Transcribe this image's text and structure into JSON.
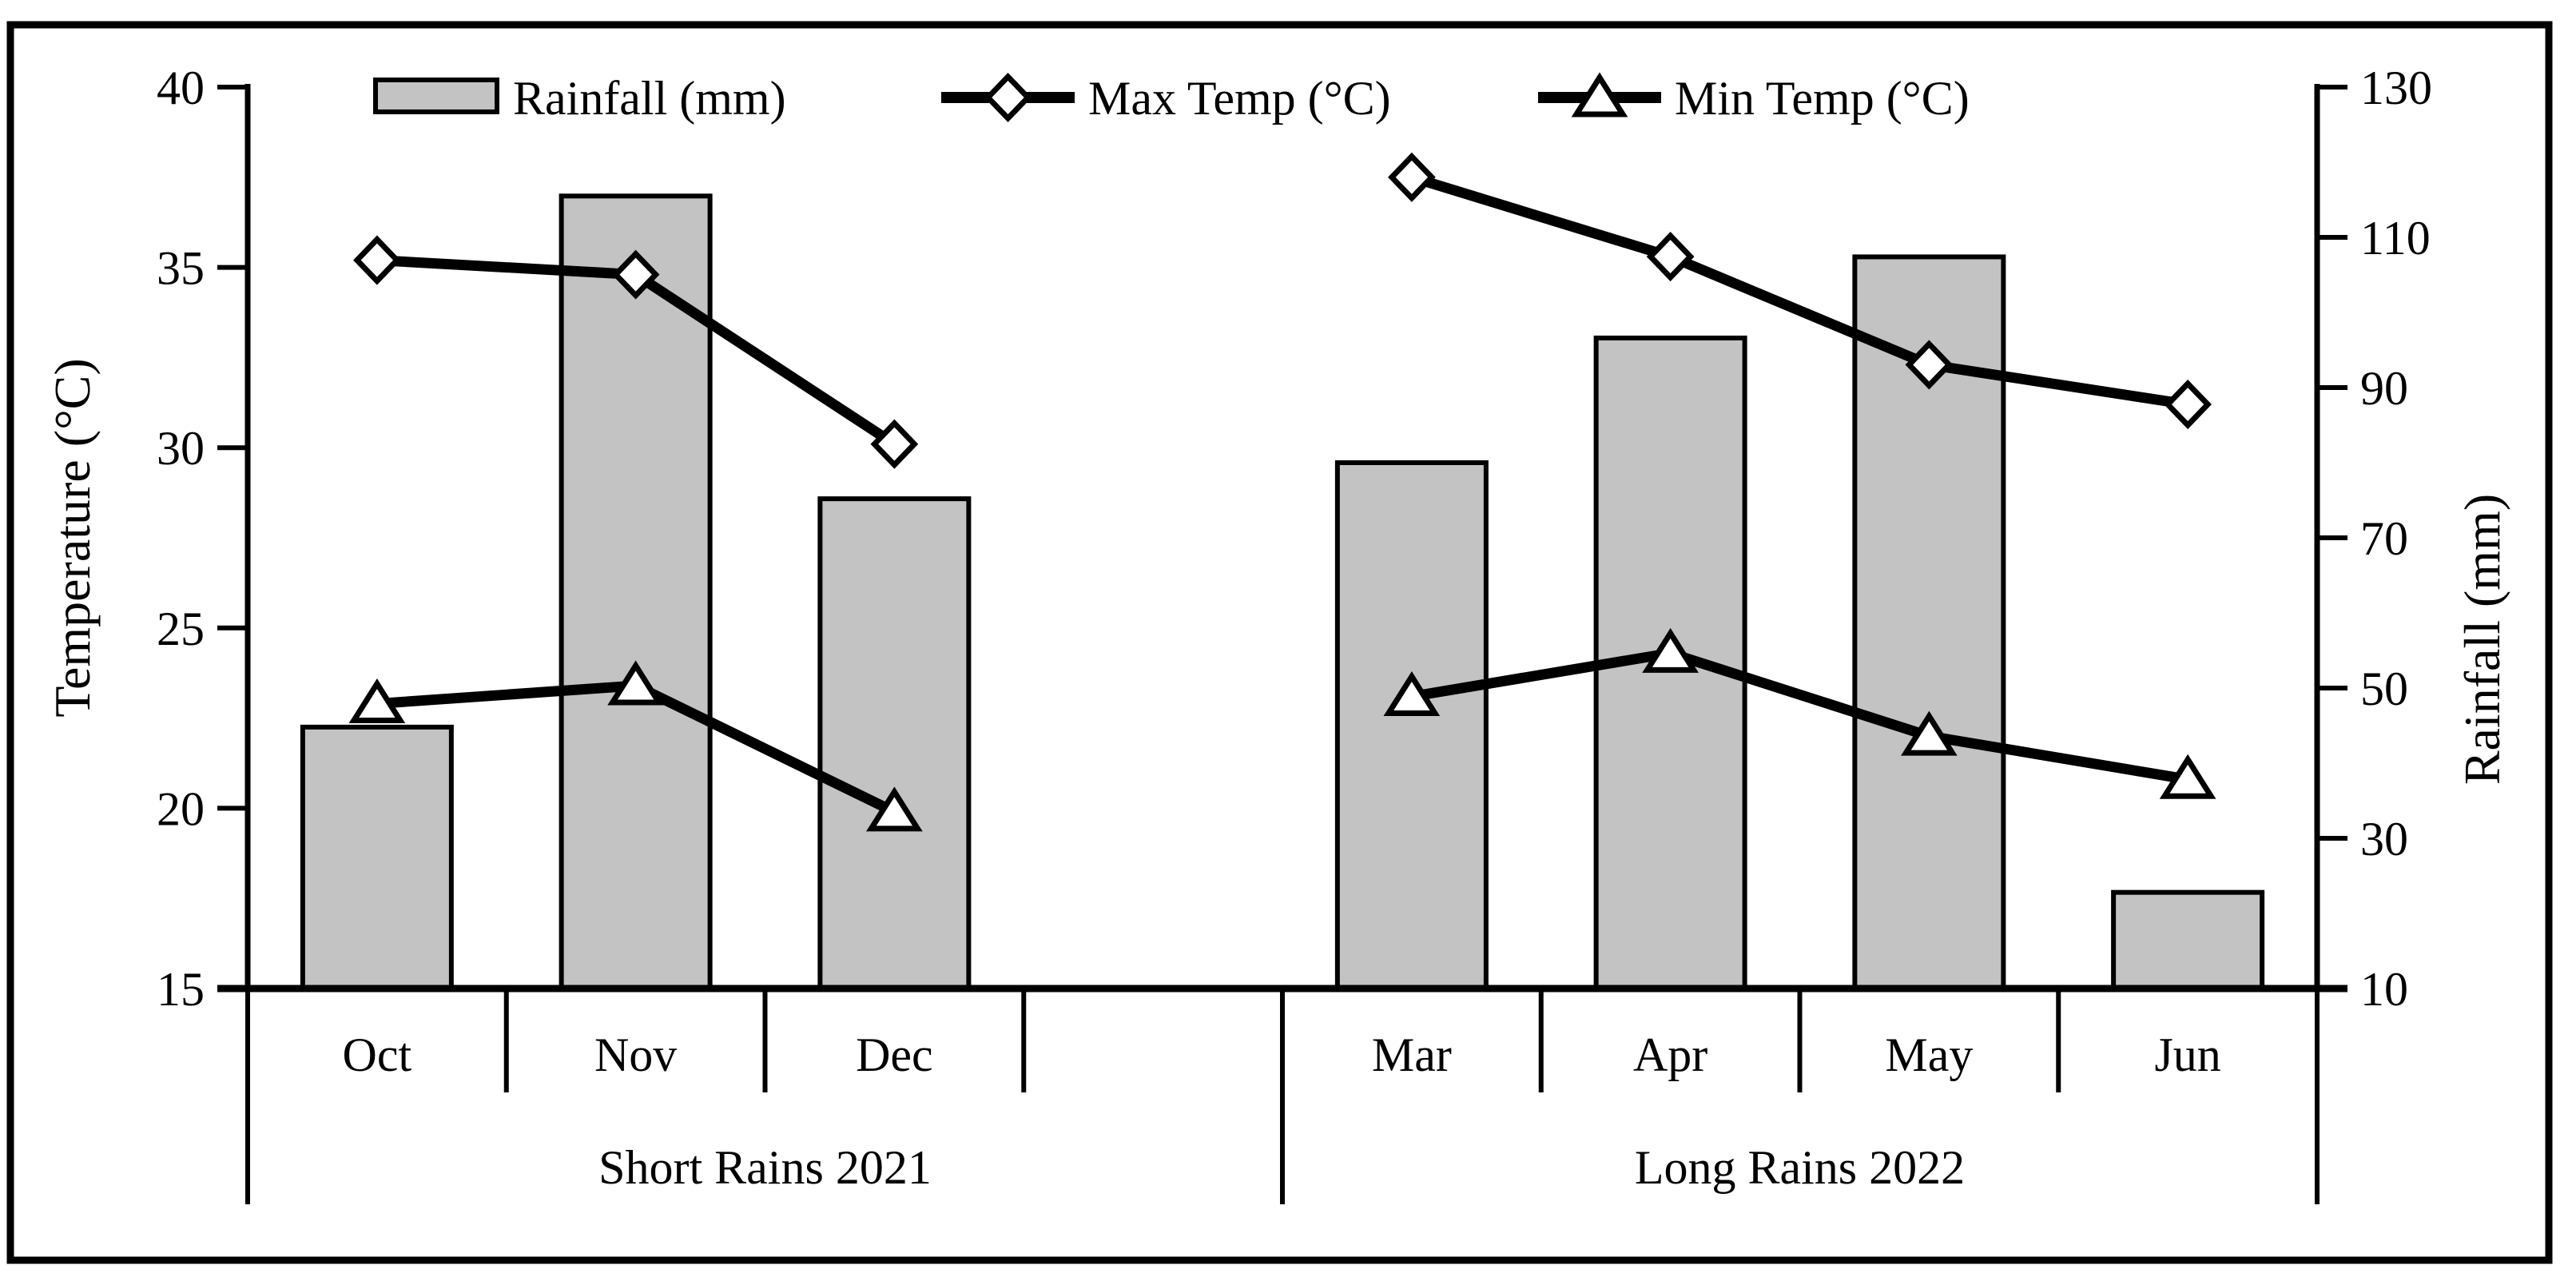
{
  "chart_data": {
    "type": "combo-bar-line",
    "categories": [
      "Oct",
      "Nov",
      "Dec",
      "",
      "Mar",
      "Apr",
      "May",
      "Jun"
    ],
    "category_groups": [
      {
        "label": "Short Rains 2021",
        "span": [
          0,
          3
        ]
      },
      {
        "label": "Long Rains 2022",
        "span": [
          4,
          7
        ]
      }
    ],
    "series": [
      {
        "name": "Rainfall (mm)",
        "type": "bar",
        "axis": "right",
        "marker": "bar-swatch",
        "fill": "#c3c3c3",
        "stroke": "#000000",
        "values": [
          44.8,
          115.5,
          75.2,
          null,
          80,
          96.6,
          107.4,
          22.8
        ]
      },
      {
        "name": "Max Temp (°C)",
        "type": "line",
        "axis": "left",
        "marker": "diamond",
        "color": "#000000",
        "values": [
          35.2,
          34.8,
          30.1,
          null,
          37.5,
          35.3,
          32.3,
          31.2
        ]
      },
      {
        "name": "Min Temp (°C)",
        "type": "line",
        "axis": "left",
        "marker": "triangle",
        "color": "#000000",
        "values": [
          22.9,
          23.4,
          19.9,
          null,
          23.1,
          24.3,
          22.0,
          20.8
        ]
      }
    ],
    "left_axis": {
      "label": "Temperature (°C)",
      "ticks": [
        15,
        20,
        25,
        30,
        35,
        40
      ],
      "ylim": [
        15,
        40
      ]
    },
    "right_axis": {
      "label": "Rainfall (mm)",
      "ticks": [
        10,
        30,
        50,
        70,
        90,
        110,
        130
      ],
      "ylim": [
        10,
        130
      ]
    },
    "legend_position": "top",
    "grid": false,
    "background": "#ffffff",
    "frame_color": "#000000"
  }
}
